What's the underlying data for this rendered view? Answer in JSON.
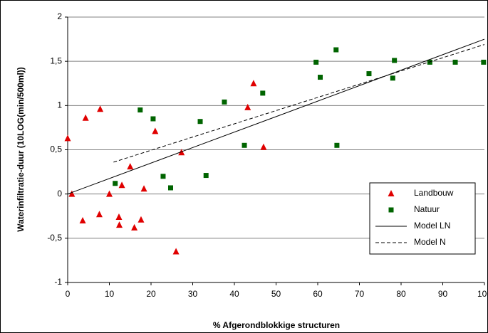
{
  "chart_data": {
    "type": "scatter",
    "x_label": "% Afgerondblokkige structuren",
    "y_label": "Waterinfiltratie-duur (10LOG(min/500ml))",
    "xlim": [
      0,
      100
    ],
    "ylim": [
      -1,
      2
    ],
    "xticks": [
      0,
      10,
      20,
      30,
      40,
      50,
      60,
      70,
      80,
      90,
      100
    ],
    "yticks": [
      -1,
      {
        "value": -0.5,
        "label": "-0,5"
      },
      0,
      {
        "value": 0.5,
        "label": "0,5"
      },
      1,
      {
        "value": 1.5,
        "label": "1,5"
      },
      2
    ],
    "grid": true,
    "legend": "lower right",
    "series": [
      {
        "name": "Landbouw",
        "color": "#e00000",
        "marker": "triangle",
        "x": [
          0,
          1,
          3.6,
          4.3,
          7.6,
          7.8,
          10,
          12.3,
          12.4,
          13,
          15,
          16,
          17.6,
          18.3,
          21,
          26,
          27.3,
          43.2,
          44.6,
          47
        ],
        "values": [
          0.63,
          0,
          -0.3,
          0.86,
          -0.23,
          0.96,
          0,
          -0.26,
          -0.35,
          0.1,
          0.31,
          -0.38,
          -0.29,
          0.06,
          0.71,
          -0.65,
          0.47,
          0.98,
          1.25,
          0.53
        ]
      },
      {
        "name": "Natuur",
        "color": "#006400",
        "marker": "square",
        "x": [
          11.4,
          17.4,
          20.5,
          22.9,
          24.7,
          31.8,
          33.2,
          37.6,
          42.4,
          46.8,
          59.6,
          60.6,
          64.4,
          64.6,
          72.3,
          78,
          78.4,
          86.9,
          93,
          99.8
        ],
        "values": [
          0.12,
          0.95,
          0.85,
          0.2,
          0.07,
          0.82,
          0.21,
          1.04,
          0.55,
          1.14,
          1.49,
          1.32,
          1.63,
          0.55,
          1.36,
          1.31,
          1.51,
          1.49,
          1.49,
          1.49
        ]
      },
      {
        "name": "Model LN",
        "color": "#000000",
        "marker": "line",
        "dash": "solid",
        "x": [
          0,
          100
        ],
        "values": [
          0,
          1.75
        ]
      },
      {
        "name": "Model N",
        "color": "#000000",
        "marker": "line",
        "dash": "dashed",
        "x": [
          11,
          100
        ],
        "values": [
          0.36,
          1.69
        ]
      }
    ]
  }
}
